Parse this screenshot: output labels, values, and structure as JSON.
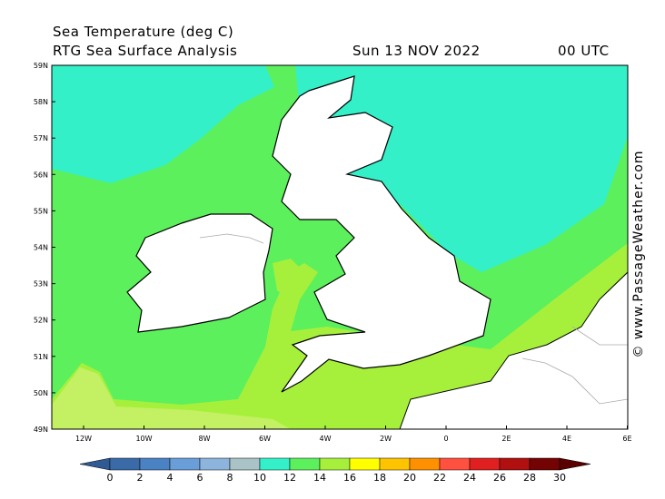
{
  "header": {
    "title": "Sea Temperature (deg C)",
    "subtitle": "RTG Sea Surface Analysis",
    "date": "Sun 13 NOV 2022",
    "time": "00 UTC"
  },
  "map": {
    "lat_labels": [
      "59N",
      "58N",
      "57N",
      "56N",
      "55N",
      "54N",
      "53N",
      "52N",
      "51N",
      "50N",
      "49N"
    ],
    "lon_labels": [
      "12W",
      "10W",
      "8W",
      "6W",
      "4W",
      "2W",
      "0",
      "2E",
      "4E",
      "6E"
    ]
  },
  "colorbar": {
    "labels": [
      "0",
      "2",
      "4",
      "6",
      "8",
      "10",
      "12",
      "14",
      "16",
      "18",
      "20",
      "22",
      "24",
      "26",
      "28",
      "30"
    ],
    "colors": [
      "#2f5a94",
      "#3a6aa8",
      "#4a82c4",
      "#6a9ed8",
      "#8db4dc",
      "#a9c3c6",
      "#33f0c8",
      "#5cf05c",
      "#a6f03c",
      "#ffff00",
      "#ffc400",
      "#ff9000",
      "#ff5040",
      "#e02020",
      "#b01010",
      "#740404",
      "#5a0000"
    ]
  },
  "watermark": "© www.PassageWeather.com"
}
